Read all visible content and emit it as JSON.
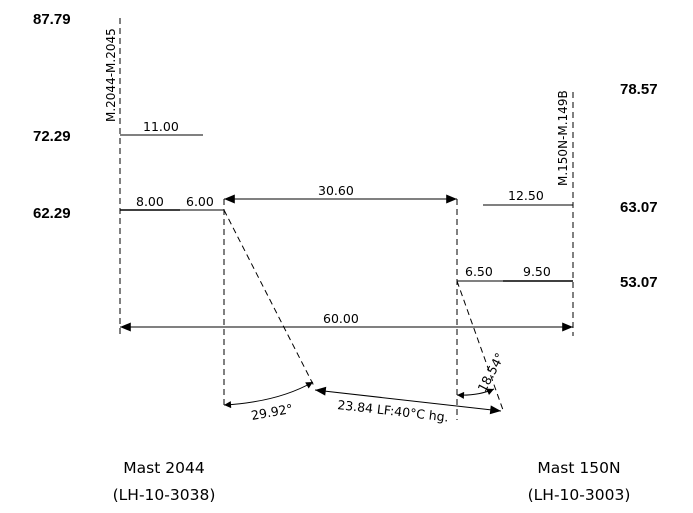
{
  "elevations": {
    "left_top": "87.79",
    "left_mid": "72.29",
    "left_low": "62.29",
    "right_top": "78.57",
    "right_mid": "63.07",
    "right_low": "53.07"
  },
  "masts": {
    "left_label": "M.2044-M.2045",
    "right_label": "M.150N-M.149B",
    "left_name": "Mast 2044",
    "left_ref": "(LH-10-3038)",
    "right_name": "Mast 150N",
    "right_ref": "(LH-10-3003)"
  },
  "dimensions": {
    "left_upper_arm": "11.00",
    "left_arm": "8.00",
    "left_insulator": "6.00",
    "conductor_gap": "30.60",
    "right_upper_arm": "12.50",
    "right_insulator": "6.50",
    "right_arm": "9.50",
    "span": "60.00",
    "left_angle": "29.92°",
    "right_angle": "18.54°",
    "sag": "23.84 LF:40°C hg."
  },
  "colors": {
    "line": "#000000",
    "background": "#ffffff"
  }
}
